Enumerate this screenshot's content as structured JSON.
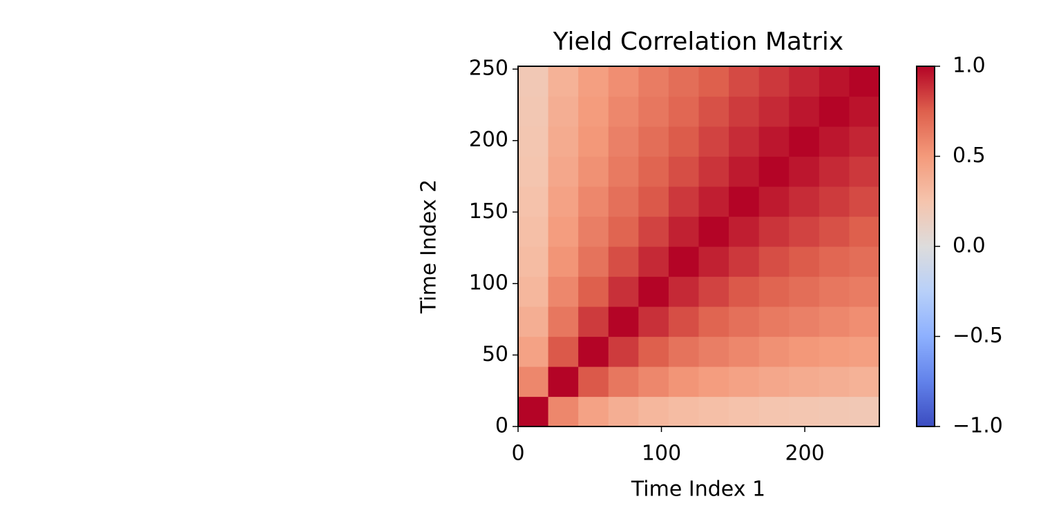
{
  "chart_data": {
    "type": "heatmap",
    "title": "Yield Correlation Matrix",
    "xlabel": "Time Index 1",
    "ylabel": "Time Index 2",
    "xlim": [
      0,
      252
    ],
    "ylim": [
      0,
      252
    ],
    "xticks": [
      0,
      100,
      200
    ],
    "yticks": [
      0,
      50,
      100,
      150,
      200,
      250
    ],
    "colormap": "coolwarm",
    "clim": [
      -1,
      1
    ],
    "cticks": [
      {
        "value": -1,
        "label": "−1.0"
      },
      {
        "value": -0.5,
        "label": "−0.5"
      },
      {
        "value": 0,
        "label": "0.0"
      },
      {
        "value": 0.5,
        "label": "0.5"
      },
      {
        "value": 1,
        "label": "1.0"
      }
    ],
    "values": [
      [
        1,
        0.58,
        0.45,
        0.38,
        0.33,
        0.3,
        0.28,
        0.26,
        0.24,
        0.23,
        0.22,
        0.21
      ],
      [
        0.58,
        1,
        0.77,
        0.65,
        0.58,
        0.52,
        0.48,
        0.45,
        0.42,
        0.4,
        0.38,
        0.36
      ],
      [
        0.45,
        0.77,
        1,
        0.85,
        0.75,
        0.67,
        0.62,
        0.58,
        0.54,
        0.51,
        0.49,
        0.47
      ],
      [
        0.38,
        0.65,
        0.85,
        1,
        0.88,
        0.8,
        0.73,
        0.68,
        0.64,
        0.61,
        0.58,
        0.55
      ],
      [
        0.33,
        0.58,
        0.75,
        0.88,
        1,
        0.9,
        0.83,
        0.77,
        0.73,
        0.69,
        0.65,
        0.63
      ],
      [
        0.3,
        0.52,
        0.67,
        0.8,
        0.9,
        1,
        0.92,
        0.86,
        0.8,
        0.76,
        0.72,
        0.69
      ],
      [
        0.28,
        0.48,
        0.62,
        0.73,
        0.83,
        0.92,
        1,
        0.93,
        0.87,
        0.83,
        0.79,
        0.75
      ],
      [
        0.26,
        0.45,
        0.58,
        0.68,
        0.77,
        0.86,
        0.93,
        1,
        0.94,
        0.89,
        0.85,
        0.81
      ],
      [
        0.24,
        0.42,
        0.54,
        0.64,
        0.73,
        0.8,
        0.87,
        0.94,
        1,
        0.95,
        0.9,
        0.86
      ],
      [
        0.23,
        0.4,
        0.51,
        0.61,
        0.69,
        0.76,
        0.83,
        0.89,
        0.95,
        1,
        0.95,
        0.91
      ],
      [
        0.22,
        0.38,
        0.49,
        0.58,
        0.65,
        0.72,
        0.79,
        0.85,
        0.9,
        0.95,
        1,
        0.96
      ],
      [
        0.21,
        0.36,
        0.47,
        0.55,
        0.63,
        0.69,
        0.75,
        0.81,
        0.86,
        0.91,
        0.96,
        1
      ]
    ]
  }
}
